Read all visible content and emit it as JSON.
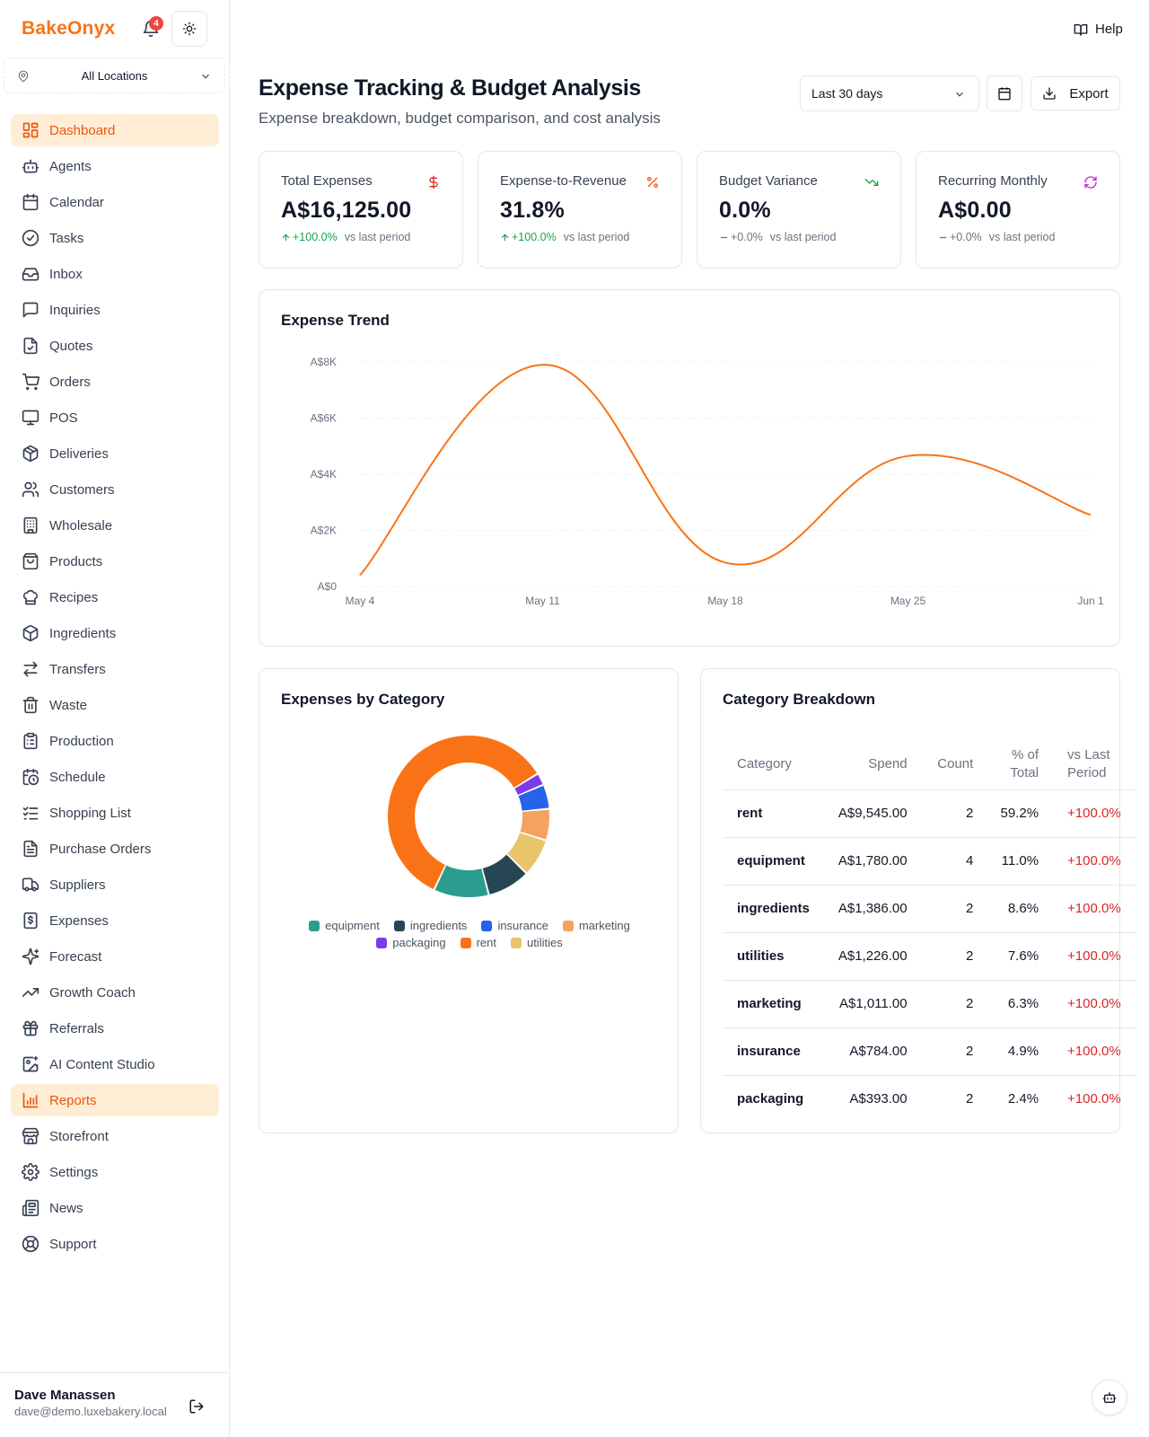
{
  "brand": "BakeOnyx",
  "notifications": {
    "count": "4"
  },
  "location": {
    "selected": "All Locations"
  },
  "nav": [
    {
      "label": "Dashboard",
      "icon": "dashboard-icon",
      "active": true
    },
    {
      "label": "Agents",
      "icon": "bot-icon"
    },
    {
      "label": "Calendar",
      "icon": "calendar-icon"
    },
    {
      "label": "Tasks",
      "icon": "check-circle-icon"
    },
    {
      "label": "Inbox",
      "icon": "inbox-icon"
    },
    {
      "label": "Inquiries",
      "icon": "message-square-icon"
    },
    {
      "label": "Quotes",
      "icon": "file-check-icon"
    },
    {
      "label": "Orders",
      "icon": "cart-icon"
    },
    {
      "label": "POS",
      "icon": "monitor-icon"
    },
    {
      "label": "Deliveries",
      "icon": "package-icon"
    },
    {
      "label": "Customers",
      "icon": "users-icon"
    },
    {
      "label": "Wholesale",
      "icon": "building-icon"
    },
    {
      "label": "Products",
      "icon": "shopping-bag-icon"
    },
    {
      "label": "Recipes",
      "icon": "chef-hat-icon"
    },
    {
      "label": "Ingredients",
      "icon": "box-icon"
    },
    {
      "label": "Transfers",
      "icon": "arrows-swap-icon"
    },
    {
      "label": "Waste",
      "icon": "trash-icon"
    },
    {
      "label": "Production",
      "icon": "clipboard-icon"
    },
    {
      "label": "Schedule",
      "icon": "calendar-clock-icon"
    },
    {
      "label": "Shopping List",
      "icon": "list-check-icon"
    },
    {
      "label": "Purchase Orders",
      "icon": "file-text-icon"
    },
    {
      "label": "Suppliers",
      "icon": "truck-icon"
    },
    {
      "label": "Expenses",
      "icon": "receipt-dollar-icon"
    },
    {
      "label": "Forecast",
      "icon": "sparkles-icon"
    },
    {
      "label": "Growth Coach",
      "icon": "trending-up-icon"
    },
    {
      "label": "Referrals",
      "icon": "gift-icon"
    },
    {
      "label": "AI Content Studio",
      "icon": "image-sparkle-icon"
    },
    {
      "label": "Reports",
      "icon": "bar-chart-icon",
      "active": true
    },
    {
      "label": "Storefront",
      "icon": "store-icon"
    },
    {
      "label": "Settings",
      "icon": "gear-icon"
    },
    {
      "label": "News",
      "icon": "newspaper-icon"
    },
    {
      "label": "Support",
      "icon": "life-buoy-icon"
    }
  ],
  "user": {
    "name": "Dave Manassen",
    "email": "dave@demo.luxebakery.local"
  },
  "header": {
    "help": "Help",
    "title": "Expense Tracking & Budget Analysis",
    "subtitle": "Expense breakdown, budget comparison, and cost analysis",
    "range": "Last 30 days",
    "export": "Export"
  },
  "kpis": [
    {
      "label": "Total Expenses",
      "value": "A$16,125.00",
      "delta": "+100.0%",
      "trend": "up",
      "suffix": "vs last period",
      "icon": "dollar-icon",
      "icon_color": "#dc2626"
    },
    {
      "label": "Expense-to-Revenue",
      "value": "31.8%",
      "delta": "+100.0%",
      "trend": "up",
      "suffix": "vs last period",
      "icon": "percent-icon",
      "icon_color": "#ea580c"
    },
    {
      "label": "Budget Variance",
      "value": "0.0%",
      "delta": "+0.0%",
      "trend": "flat",
      "suffix": "vs last period",
      "icon": "trending-down-icon",
      "icon_color": "#16a34a"
    },
    {
      "label": "Recurring Monthly",
      "value": "A$0.00",
      "delta": "+0.0%",
      "trend": "flat",
      "suffix": "vs last period",
      "icon": "refresh-icon",
      "icon_color": "#c026d3"
    }
  ],
  "trend": {
    "title": "Expense Trend",
    "chart_data": {
      "type": "line",
      "x": [
        "May 4",
        "May 11",
        "May 18",
        "May 25",
        "Jun 1"
      ],
      "values": [
        400,
        7900,
        850,
        4650,
        2550
      ],
      "ytick_labels": [
        "A$0",
        "A$2K",
        "A$4K",
        "A$6K",
        "A$8K"
      ],
      "yticks": [
        0,
        2000,
        4000,
        6000,
        8000
      ],
      "ylim": [
        0,
        8000
      ],
      "color": "#f97316",
      "grid": true
    }
  },
  "category": {
    "title": "Expenses by Category",
    "chart_data": {
      "type": "pie",
      "donut": true,
      "slices": [
        {
          "name": "rent",
          "value": 9545,
          "color": "#f97316"
        },
        {
          "name": "packaging",
          "value": 393,
          "color": "#7c3aed"
        },
        {
          "name": "insurance",
          "value": 784,
          "color": "#2563eb"
        },
        {
          "name": "marketing",
          "value": 1011,
          "color": "#f4a261"
        },
        {
          "name": "utilities",
          "value": 1226,
          "color": "#e9c46a"
        },
        {
          "name": "ingredients",
          "value": 1386,
          "color": "#264653"
        },
        {
          "name": "equipment",
          "value": 1780,
          "color": "#2a9d8f"
        }
      ],
      "legend": [
        "equipment",
        "ingredients",
        "insurance",
        "marketing",
        "packaging",
        "rent",
        "utilities"
      ]
    }
  },
  "breakdown": {
    "title": "Category Breakdown",
    "columns": [
      "Category",
      "Spend",
      "Count",
      "% of Total",
      "vs Last Period"
    ],
    "rows": [
      {
        "category": "rent",
        "spend": "A$9,545.00",
        "count": "2",
        "pct": "59.2%",
        "vs": "+100.0%"
      },
      {
        "category": "equipment",
        "spend": "A$1,780.00",
        "count": "4",
        "pct": "11.0%",
        "vs": "+100.0%"
      },
      {
        "category": "ingredients",
        "spend": "A$1,386.00",
        "count": "2",
        "pct": "8.6%",
        "vs": "+100.0%"
      },
      {
        "category": "utilities",
        "spend": "A$1,226.00",
        "count": "2",
        "pct": "7.6%",
        "vs": "+100.0%"
      },
      {
        "category": "marketing",
        "spend": "A$1,011.00",
        "count": "2",
        "pct": "6.3%",
        "vs": "+100.0%"
      },
      {
        "category": "insurance",
        "spend": "A$784.00",
        "count": "2",
        "pct": "4.9%",
        "vs": "+100.0%"
      },
      {
        "category": "packaging",
        "spend": "A$393.00",
        "count": "2",
        "pct": "2.4%",
        "vs": "+100.0%"
      }
    ]
  }
}
